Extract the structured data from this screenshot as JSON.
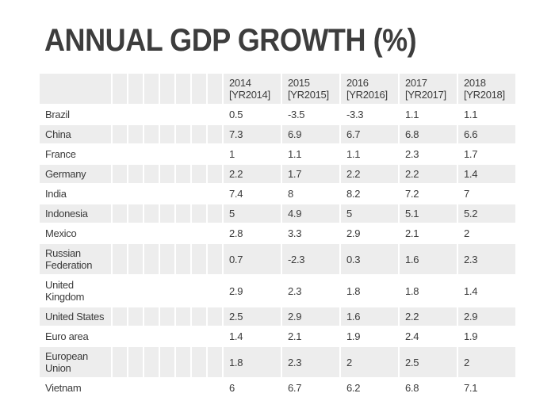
{
  "title": "ANNUAL GDP GROWTH (%)",
  "chart_data": {
    "type": "table",
    "title": "ANNUAL GDP GROWTH (%)",
    "columns": [
      {
        "year": "2014",
        "code": "[YR2014]"
      },
      {
        "year": "2015",
        "code": "[YR2015]"
      },
      {
        "year": "2016",
        "code": "[YR2016]"
      },
      {
        "year": "2017",
        "code": "[YR2017]"
      },
      {
        "year": "2018",
        "code": "[YR2018]"
      }
    ],
    "filler_column_count": 7,
    "rows": [
      {
        "country": "Brazil",
        "values": [
          "0.5",
          "-3.5",
          "-3.3",
          "1.1",
          "1.1"
        ]
      },
      {
        "country": "China",
        "values": [
          "7.3",
          "6.9",
          "6.7",
          "6.8",
          "6.6"
        ]
      },
      {
        "country": "France",
        "values": [
          "1",
          "1.1",
          "1.1",
          "2.3",
          "1.7"
        ]
      },
      {
        "country": "Germany",
        "values": [
          "2.2",
          "1.7",
          "2.2",
          "2.2",
          "1.4"
        ]
      },
      {
        "country": "India",
        "values": [
          "7.4",
          "8",
          "8.2",
          "7.2",
          "7"
        ]
      },
      {
        "country": "Indonesia",
        "values": [
          "5",
          "4.9",
          "5",
          "5.1",
          "5.2"
        ]
      },
      {
        "country": "Mexico",
        "values": [
          "2.8",
          "3.3",
          "2.9",
          "2.1",
          "2"
        ]
      },
      {
        "country": "Russian Federation",
        "values": [
          "0.7",
          "-2.3",
          "0.3",
          "1.6",
          "2.3"
        ]
      },
      {
        "country": "United Kingdom",
        "values": [
          "2.9",
          "2.3",
          "1.8",
          "1.8",
          "1.4"
        ]
      },
      {
        "country": "United States",
        "values": [
          "2.5",
          "2.9",
          "1.6",
          "2.2",
          "2.9"
        ]
      },
      {
        "country": "Euro area",
        "values": [
          "1.4",
          "2.1",
          "1.9",
          "2.4",
          "1.9"
        ]
      },
      {
        "country": "European Union",
        "values": [
          "1.8",
          "2.3",
          "2",
          "2.5",
          "2"
        ]
      },
      {
        "country": "Vietnam",
        "values": [
          "6",
          "6.7",
          "6.2",
          "6.8",
          "7.1"
        ]
      }
    ]
  },
  "colors": {
    "background": "#ffffff",
    "stripe_row_bg": "#ededed",
    "header_bg": "#ededed",
    "text": "#3b3b3b",
    "title_text": "#3d3d3d"
  }
}
